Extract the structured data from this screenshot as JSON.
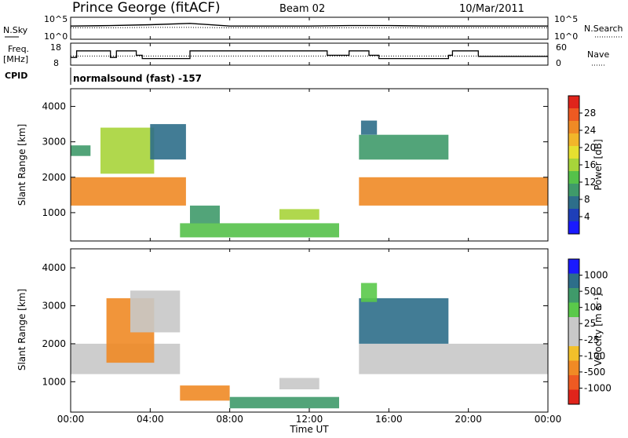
{
  "header": {
    "station": "Prince George (fitACF)",
    "beam": "Beam 02",
    "date": "10/Mar/2011"
  },
  "top_panels": {
    "nsky_label": "N.Sky",
    "nsearch_label": "N.Search",
    "nsky_ticks": [
      "10^5",
      "10^0"
    ],
    "nsearch_ticks": [
      "10^5",
      "10^0"
    ],
    "freq_label_1": "Freq.",
    "freq_label_2": "[MHz]",
    "freq_ticks": [
      "18",
      "8"
    ],
    "nave_label": "Nave",
    "nave_ticks": [
      "60",
      "0"
    ],
    "cpid_label": "CPID",
    "cpid_text": "normalsound (fast) -157"
  },
  "colors": {
    "power_scale": [
      "#1a1aff",
      "#1e3fb8",
      "#2d6e8a",
      "#3f9a6a",
      "#55c14a",
      "#a7d43a",
      "#e6e030",
      "#f2b62a",
      "#f08a25",
      "#ee5a22",
      "#e0241b"
    ],
    "velocity_scale": [
      "#e0241b",
      "#ee5a22",
      "#f08a25",
      "#f2c02a",
      "#c8c8c8",
      "#c8c8c8",
      "#5ac94a",
      "#3f9a6a",
      "#2d6e8a",
      "#1a1aff"
    ]
  },
  "chart_data": [
    {
      "type": "line",
      "panel": "N.Sky / N.Search",
      "x": [
        "00:00",
        "02:00",
        "04:00",
        "06:00",
        "08:00",
        "10:00",
        "12:00",
        "14:00",
        "16:00",
        "18:00",
        "20:00",
        "22:00",
        "24:00"
      ],
      "series": [
        {
          "name": "N.Sky",
          "values": [
            3.0,
            3.1,
            3.3,
            3.6,
            3.0,
            3.0,
            3.0,
            3.1,
            3.1,
            3.0,
            3.0,
            3.0,
            3.0
          ]
        },
        {
          "name": "N.Search",
          "values": [
            2.6,
            2.6,
            2.7,
            2.7,
            2.6,
            2.6,
            2.6,
            2.6,
            2.6,
            2.6,
            2.6,
            2.6,
            2.6
          ]
        }
      ],
      "ylim": [
        0,
        5
      ],
      "ylabel": "N.Sky",
      "ylabel_right": "N.Search"
    },
    {
      "type": "line",
      "panel": "Freq / Nave",
      "x_hours": [
        0,
        0.3,
        0.6,
        1.8,
        2.0,
        2.3,
        2.6,
        3.0,
        3.3,
        3.6,
        4.3,
        5.2,
        5.6,
        6.0,
        12.4,
        12.9,
        13.5,
        14.0,
        14.4,
        15.0,
        15.5,
        16.0,
        17.5,
        18.5,
        19.0,
        19.2,
        20.5,
        24.0
      ],
      "series": [
        {
          "name": "Freq",
          "values": [
            11.5,
            14.5,
            14.5,
            14.5,
            11.5,
            14.5,
            14.5,
            14.5,
            12.5,
            11.0,
            11.0,
            11.0,
            11.0,
            14.5,
            14.5,
            12.5,
            12.5,
            14.5,
            14.5,
            12.5,
            11.0,
            11.0,
            11.0,
            11.0,
            12.5,
            14.5,
            12.0,
            12.0
          ]
        },
        {
          "name": "Nave",
          "values": [
            25,
            25,
            25,
            25,
            25,
            25,
            25,
            25,
            25,
            25,
            25,
            25,
            25,
            25,
            25,
            25,
            25,
            25,
            25,
            25,
            25,
            25,
            25,
            25,
            25,
            25,
            25,
            25
          ]
        }
      ],
      "ylim": [
        8,
        18
      ],
      "ylim_right": [
        0,
        60
      ],
      "ylabel": "Freq. [MHz]",
      "ylabel_right": "Nave"
    },
    {
      "type": "heatmap",
      "panel": "Power",
      "xlabel": "",
      "ylabel": "Slant Range [km]",
      "xlim_hours": [
        0,
        24
      ],
      "ylim": [
        200,
        4500
      ],
      "yticks": [
        1000,
        2000,
        3000,
        4000
      ],
      "colorbar_label": "Power [dB]",
      "colorbar_ticks": [
        "28",
        "24",
        "20",
        "16",
        "12",
        "8",
        "4"
      ],
      "clim": [
        0,
        32
      ],
      "regions": [
        {
          "t0": 0.0,
          "t1": 5.8,
          "r0": 1200,
          "r1": 2000,
          "v": 26
        },
        {
          "t0": 0.0,
          "t1": 1.0,
          "r0": 2600,
          "r1": 2900,
          "v": 8
        },
        {
          "t0": 1.5,
          "t1": 4.2,
          "r0": 2100,
          "r1": 3400,
          "v": 15
        },
        {
          "t0": 4.0,
          "t1": 5.8,
          "r0": 2500,
          "r1": 3500,
          "v": 6
        },
        {
          "t0": 5.5,
          "t1": 13.5,
          "r0": 300,
          "r1": 700,
          "v": 14
        },
        {
          "t0": 6.0,
          "t1": 7.5,
          "r0": 700,
          "r1": 1200,
          "v": 10
        },
        {
          "t0": 10.5,
          "t1": 12.5,
          "r0": 800,
          "r1": 1100,
          "v": 16
        },
        {
          "t0": 14.5,
          "t1": 24.0,
          "r0": 1200,
          "r1": 2000,
          "v": 24
        },
        {
          "t0": 14.5,
          "t1": 19.0,
          "r0": 2500,
          "r1": 3200,
          "v": 9
        },
        {
          "t0": 14.6,
          "t1": 15.4,
          "r0": 3200,
          "r1": 3600,
          "v": 5
        }
      ]
    },
    {
      "type": "heatmap",
      "panel": "Velocity",
      "xlabel": "Time UT",
      "ylabel": "Slant Range [km]",
      "xlim_hours": [
        0,
        24
      ],
      "ylim": [
        200,
        4500
      ],
      "yticks": [
        1000,
        2000,
        3000,
        4000
      ],
      "xticks": [
        "00:00",
        "04:00",
        "08:00",
        "12:00",
        "16:00",
        "20:00",
        "00:00"
      ],
      "colorbar_label": "Velocity [m s⁻¹]",
      "colorbar_ticks": [
        "1000",
        "500",
        "100",
        "25",
        "-25",
        "-100",
        "-500",
        "-1000"
      ],
      "regions": [
        {
          "t0": 0.0,
          "t1": 5.5,
          "r0": 1200,
          "r1": 2000,
          "v": 0
        },
        {
          "t0": 1.8,
          "t1": 4.2,
          "r0": 1500,
          "r1": 3200,
          "v": -400
        },
        {
          "t0": 3.0,
          "t1": 5.5,
          "r0": 2300,
          "r1": 3400,
          "v": 0
        },
        {
          "t0": 5.5,
          "t1": 8.0,
          "r0": 500,
          "r1": 900,
          "v": -300
        },
        {
          "t0": 8.0,
          "t1": 13.5,
          "r0": 300,
          "r1": 600,
          "v": 150
        },
        {
          "t0": 10.5,
          "t1": 12.5,
          "r0": 800,
          "r1": 1100,
          "v": 0
        },
        {
          "t0": 14.5,
          "t1": 24.0,
          "r0": 1200,
          "r1": 2000,
          "v": 0
        },
        {
          "t0": 14.5,
          "t1": 19.0,
          "r0": 2000,
          "r1": 3200,
          "v": 600
        },
        {
          "t0": 14.6,
          "t1": 15.4,
          "r0": 3100,
          "r1": 3600,
          "v": 80
        }
      ]
    }
  ]
}
